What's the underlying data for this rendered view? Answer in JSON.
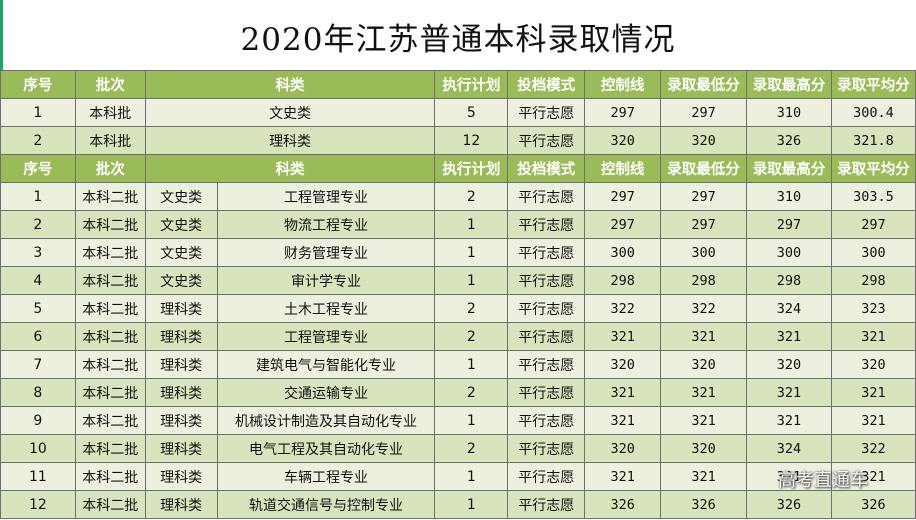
{
  "title": "2020年江苏普通本科录取情况",
  "header": {
    "seq": "序号",
    "batch": "批次",
    "subject": "科类",
    "plan": "执行计划",
    "mode": "投档模式",
    "control": "控制线",
    "min": "录取最低分",
    "max": "录取最高分",
    "avg": "录取平均分"
  },
  "summary_rows": [
    {
      "seq": "1",
      "batch": "本科批",
      "subject": "文史类",
      "plan": "5",
      "mode": "平行志愿",
      "control": "297",
      "min": "297",
      "max": "310",
      "avg": "300.4"
    },
    {
      "seq": "2",
      "batch": "本科批",
      "subject": "理科类",
      "plan": "12",
      "mode": "平行志愿",
      "control": "320",
      "min": "320",
      "max": "326",
      "avg": "321.8"
    }
  ],
  "detail_rows": [
    {
      "seq": "1",
      "batch": "本科二批",
      "type": "文史类",
      "major": "工程管理专业",
      "plan": "2",
      "mode": "平行志愿",
      "control": "297",
      "min": "297",
      "max": "310",
      "avg": "303.5"
    },
    {
      "seq": "2",
      "batch": "本科二批",
      "type": "文史类",
      "major": "物流工程专业",
      "plan": "1",
      "mode": "平行志愿",
      "control": "297",
      "min": "297",
      "max": "297",
      "avg": "297"
    },
    {
      "seq": "3",
      "batch": "本科二批",
      "type": "文史类",
      "major": "财务管理专业",
      "plan": "1",
      "mode": "平行志愿",
      "control": "300",
      "min": "300",
      "max": "300",
      "avg": "300"
    },
    {
      "seq": "4",
      "batch": "本科二批",
      "type": "文史类",
      "major": "审计学专业",
      "plan": "1",
      "mode": "平行志愿",
      "control": "298",
      "min": "298",
      "max": "298",
      "avg": "298"
    },
    {
      "seq": "5",
      "batch": "本科二批",
      "type": "理科类",
      "major": "土木工程专业",
      "plan": "2",
      "mode": "平行志愿",
      "control": "322",
      "min": "322",
      "max": "324",
      "avg": "323"
    },
    {
      "seq": "6",
      "batch": "本科二批",
      "type": "理科类",
      "major": "工程管理专业",
      "plan": "2",
      "mode": "平行志愿",
      "control": "321",
      "min": "321",
      "max": "321",
      "avg": "321"
    },
    {
      "seq": "7",
      "batch": "本科二批",
      "type": "理科类",
      "major": "建筑电气与智能化专业",
      "plan": "1",
      "mode": "平行志愿",
      "control": "320",
      "min": "320",
      "max": "320",
      "avg": "320"
    },
    {
      "seq": "8",
      "batch": "本科二批",
      "type": "理科类",
      "major": "交通运输专业",
      "plan": "2",
      "mode": "平行志愿",
      "control": "321",
      "min": "321",
      "max": "321",
      "avg": "321"
    },
    {
      "seq": "9",
      "batch": "本科二批",
      "type": "理科类",
      "major": "机械设计制造及其自动化专业",
      "plan": "1",
      "mode": "平行志愿",
      "control": "321",
      "min": "321",
      "max": "321",
      "avg": "321"
    },
    {
      "seq": "10",
      "batch": "本科二批",
      "type": "理科类",
      "major": "电气工程及其自动化专业",
      "plan": "2",
      "mode": "平行志愿",
      "control": "320",
      "min": "320",
      "max": "324",
      "avg": "322"
    },
    {
      "seq": "11",
      "batch": "本科二批",
      "type": "理科类",
      "major": "车辆工程专业",
      "plan": "1",
      "mode": "平行志愿",
      "control": "321",
      "min": "321",
      "max": "321",
      "avg": "321"
    },
    {
      "seq": "12",
      "batch": "本科二批",
      "type": "理科类",
      "major": "轨道交通信号与控制专业",
      "plan": "1",
      "mode": "平行志愿",
      "control": "326",
      "min": "326",
      "max": "326",
      "avg": "326"
    }
  ],
  "watermark": "高考直通车",
  "colors": {
    "header_bg": "#9bbb59",
    "row_light": "#ebf1de",
    "row_dark": "#d8e4bc"
  }
}
